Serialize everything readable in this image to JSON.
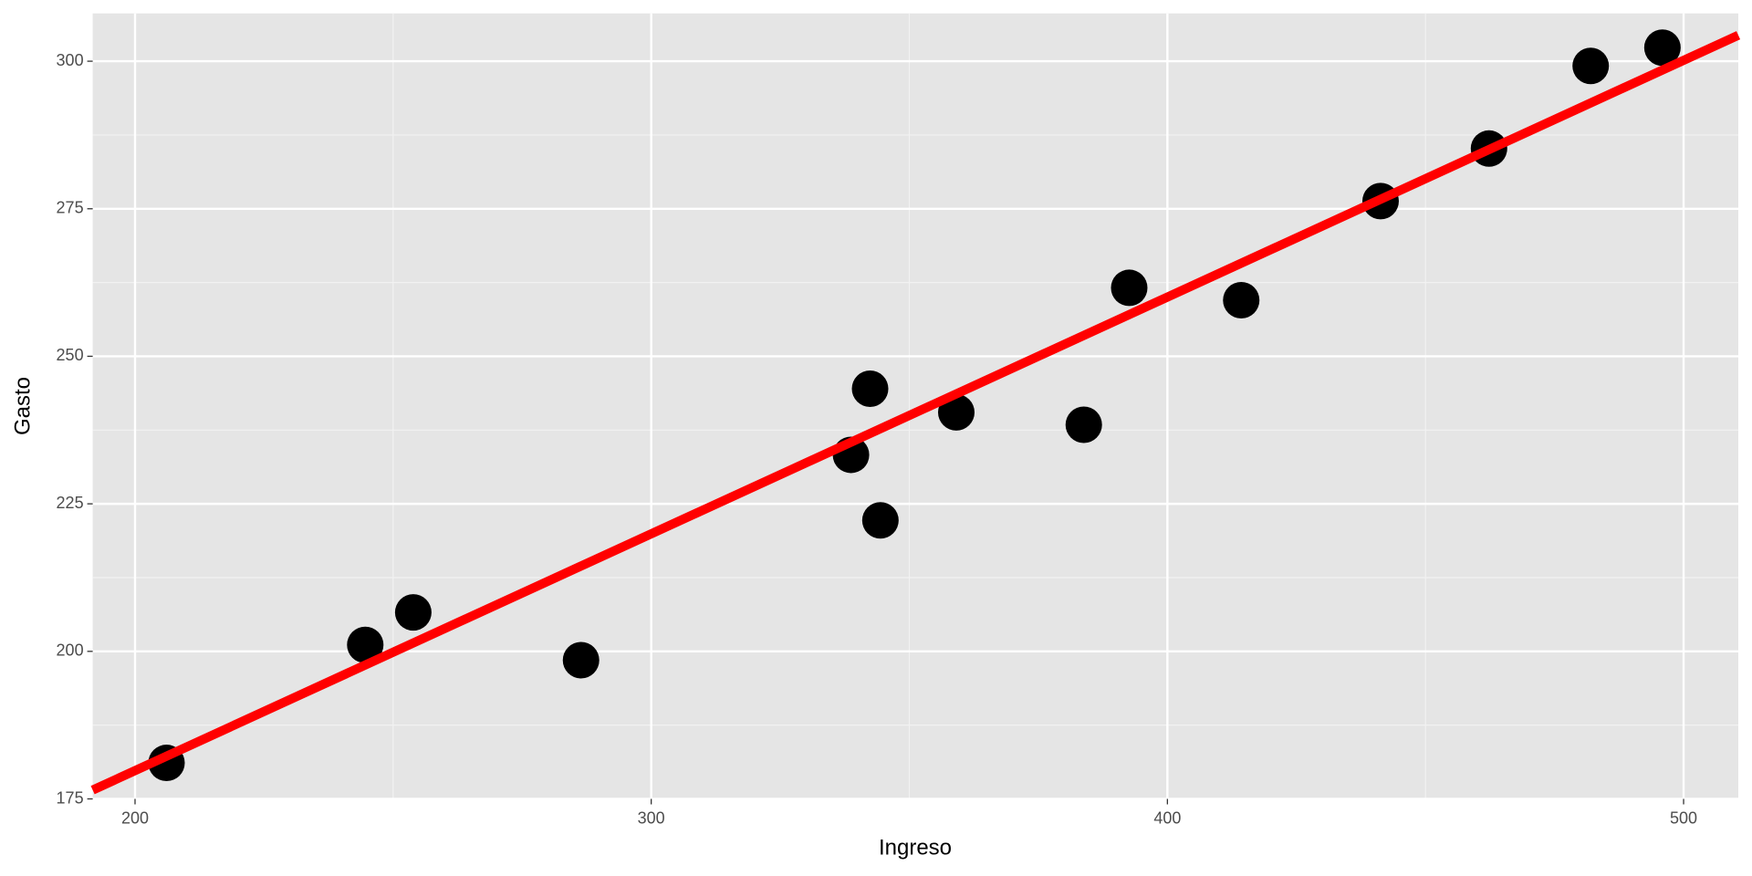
{
  "chart_data": {
    "type": "scatter",
    "x_label": "Ingreso",
    "y_label": "Gasto",
    "points": {
      "color": "#000000",
      "x": [
        206.1,
        244.6,
        253.9,
        286.4,
        338.7,
        342.4,
        344.4,
        359.1,
        383.8,
        392.6,
        414.3,
        441.3,
        462.3,
        482.0,
        495.9
      ],
      "values": [
        181.1,
        201.1,
        206.6,
        198.5,
        233.3,
        244.5,
        222.2,
        240.5,
        238.4,
        261.6,
        259.5,
        276.3,
        285.2,
        299.2,
        302.3
      ]
    },
    "fit_line": {
      "color": "#ff0000",
      "x": [
        191.8,
        510.6
      ],
      "values": [
        176.5,
        304.4
      ]
    },
    "xlim": [
      191.8,
      510.6
    ],
    "ylim": [
      175,
      308.1
    ],
    "xticks": [
      200,
      300,
      400,
      500
    ],
    "yticks": [
      175,
      200,
      225,
      250,
      275,
      300
    ],
    "x_minor_grid": [
      250,
      350,
      450
    ],
    "y_minor_grid": [
      187.5,
      212.5,
      237.5,
      262.5,
      287.5
    ],
    "grid": true
  }
}
